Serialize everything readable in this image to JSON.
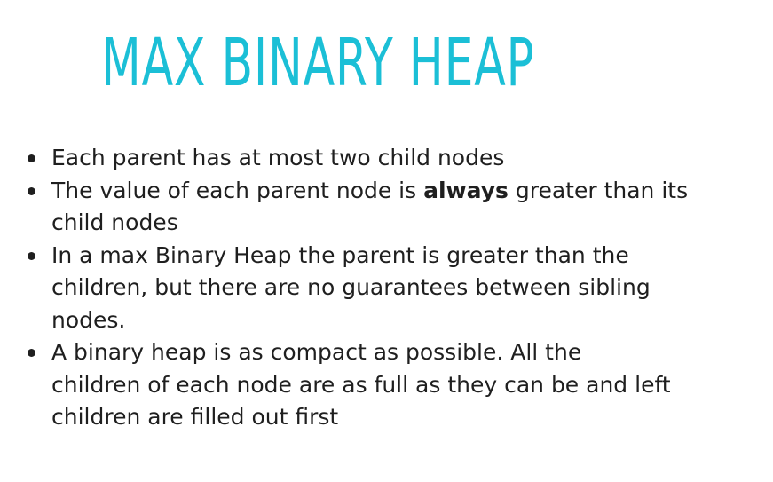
{
  "slide": {
    "title": "MAX BINARY HEAP",
    "title_color": "#1bbfd6",
    "bullets": [
      {
        "text": "Each parent has at most two child nodes"
      },
      {
        "before": "The value of each parent node is ",
        "emphasis": "always",
        "after": " greater than its child nodes"
      },
      {
        "text": "In a max Binary Heap the parent is greater than the children, but there are no guarantees between sibling nodes."
      },
      {
        "text": "A binary heap is as compact as possible. All the children of each node are as full as they can be and left children are filled out first"
      }
    ]
  }
}
